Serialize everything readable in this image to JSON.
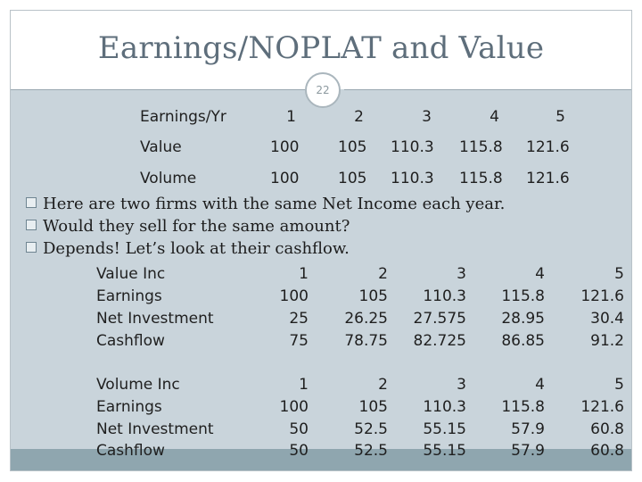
{
  "title": "Earnings/NOPLAT and Value",
  "slide_number": "22",
  "top_table": {
    "headers": [
      "Earnings/Yr",
      "1",
      "2",
      "3",
      "4",
      "5"
    ],
    "rows": [
      [
        "Value",
        "100",
        "105",
        "110.3",
        "115.8",
        "121.6"
      ],
      [
        "Volume",
        "100",
        "105",
        "110.3",
        "115.8",
        "121.6"
      ]
    ]
  },
  "bullets": [
    "Here are two firms with the same Net Income each year.",
    "Would they sell for the same amount?",
    "Depends!  Let’s look at their cashflow."
  ],
  "value_table": {
    "rows": [
      [
        "Value Inc",
        "1",
        "2",
        "3",
        "4",
        "5"
      ],
      [
        "Earnings",
        "100",
        "105",
        "110.3",
        "115.8",
        "121.6"
      ],
      [
        "Net Investment",
        "25",
        "26.25",
        "27.575",
        "28.95",
        "30.4"
      ],
      [
        "Cashflow",
        "75",
        "78.75",
        "82.725",
        "86.85",
        "91.2"
      ]
    ]
  },
  "volume_table": {
    "rows": [
      [
        "Volume Inc",
        "1",
        "2",
        "3",
        "4",
        "5"
      ],
      [
        "Earnings",
        "100",
        "105",
        "110.3",
        "115.8",
        "121.6"
      ],
      [
        "Net Investment",
        "50",
        "52.5",
        "55.15",
        "57.9",
        "60.8"
      ],
      [
        "Cashflow",
        "50",
        "52.5",
        "55.15",
        "57.9",
        "60.8"
      ]
    ]
  }
}
